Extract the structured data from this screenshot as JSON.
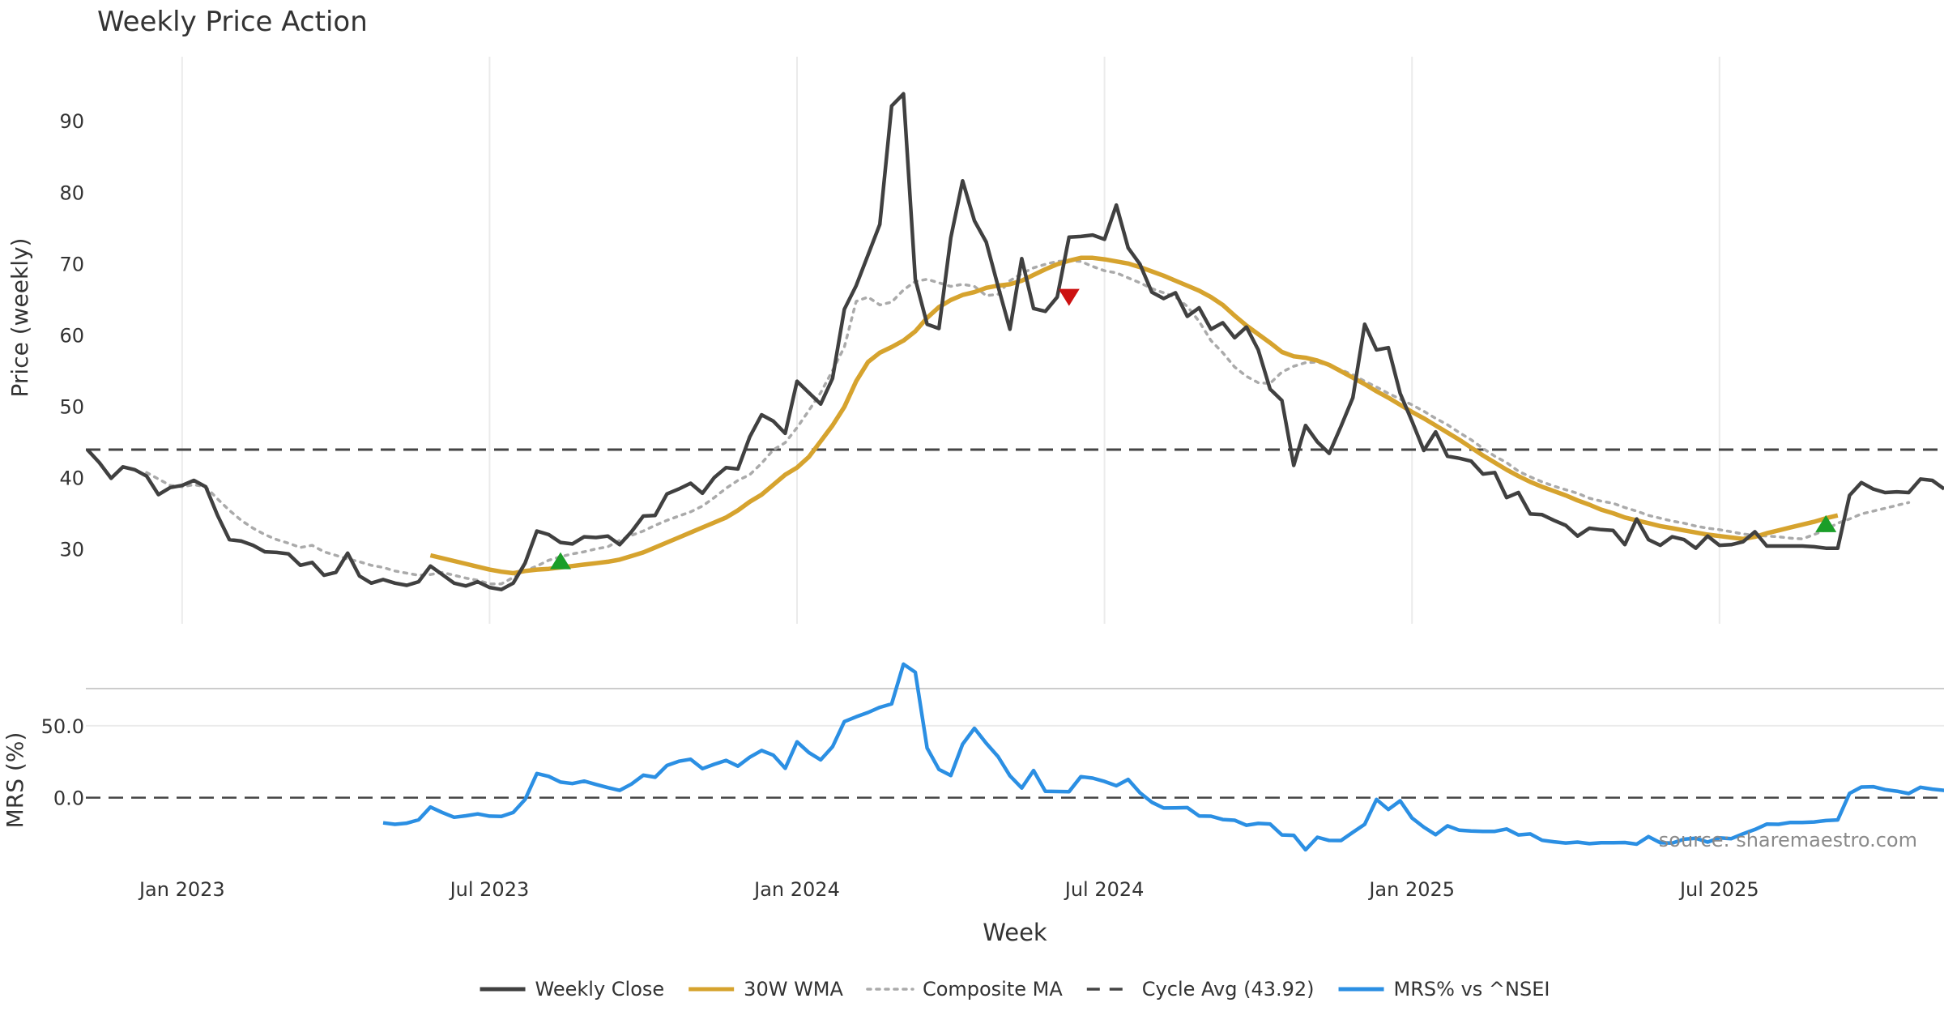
{
  "chart_data": [
    {
      "type": "line",
      "title": "Weekly Price Action",
      "ylabel": "Price (weekly)",
      "xlabel": "Week",
      "ylim": [
        19.5,
        99
      ],
      "yticks": [
        30,
        40,
        50,
        60,
        70,
        80,
        90
      ],
      "xticks": [
        {
          "label": "Jan 2023",
          "week": 13
        },
        {
          "label": "Jul 2023",
          "week": 39
        },
        {
          "label": "Jan 2024",
          "week": 65
        },
        {
          "label": "Jul 2024",
          "week": 91
        },
        {
          "label": "Jan 2025",
          "week": 117
        },
        {
          "label": "Jul 2025",
          "week": 143
        }
      ],
      "grid": "vertical",
      "cycle_avg": 43.92,
      "series": [
        {
          "name": "Weekly Close",
          "color": "#404040",
          "style": "solid",
          "x_start": 5,
          "values": [
            43.9,
            42.1,
            39.9,
            41.5,
            41.1,
            40.2,
            37.6,
            38.6,
            38.9,
            39.6,
            38.7,
            34.7,
            31.3,
            31.1,
            30.5,
            29.6,
            29.5,
            29.3,
            27.7,
            28.1,
            26.3,
            26.7,
            29.4,
            26.2,
            25.2,
            25.7,
            25.2,
            24.9,
            25.4,
            27.6,
            26.4,
            25.2,
            24.8,
            25.4,
            24.6,
            24.3,
            25.2,
            28.0,
            32.5,
            32.0,
            30.9,
            30.7,
            31.7,
            31.6,
            31.8,
            30.6,
            32.4,
            34.6,
            34.7,
            37.7,
            38.4,
            39.2,
            37.8,
            40.0,
            41.4,
            41.2,
            45.7,
            48.8,
            47.9,
            46.2,
            53.5,
            51.9,
            50.3,
            53.9,
            63.6,
            66.9,
            71.2,
            75.5,
            92.1,
            93.8,
            67.8,
            61.5,
            60.9,
            73.6,
            81.6,
            76.0,
            73.0,
            66.8,
            60.8,
            70.7,
            63.7,
            63.3,
            65.3,
            73.7,
            73.8,
            74.0,
            73.4,
            78.2,
            72.2,
            69.9,
            66.0,
            65.1,
            65.9,
            62.6,
            63.8,
            60.8,
            61.7,
            59.6,
            61.1,
            57.9,
            52.4,
            50.8,
            41.7,
            47.3,
            45.0,
            43.4,
            47.2,
            51.2,
            61.5,
            57.9,
            58.2,
            51.8,
            47.9,
            43.8,
            46.4,
            43.0,
            42.7,
            42.3,
            40.5,
            40.7,
            37.2,
            37.9,
            34.9,
            34.8,
            34.0,
            33.3,
            31.8,
            32.9,
            32.7,
            32.6,
            30.6,
            34.2,
            31.3,
            30.5,
            31.7,
            31.3,
            30.1,
            31.8,
            30.5,
            30.6,
            31.0,
            32.4,
            30.4,
            30.4,
            30.4,
            30.4,
            30.3,
            30.1,
            30.1,
            37.5,
            39.3,
            38.4,
            37.9,
            38.0,
            37.9,
            39.8,
            39.6,
            38.4
          ]
        },
        {
          "name": "30W WMA",
          "color": "#d6a32e",
          "style": "solid",
          "x_start": 34,
          "values": [
            29.1,
            28.7,
            28.3,
            27.9,
            27.5,
            27.1,
            26.8,
            26.6,
            26.9,
            27.1,
            27.2,
            27.4,
            27.6,
            27.8,
            28.0,
            28.2,
            28.5,
            29.0,
            29.5,
            30.2,
            30.9,
            31.6,
            32.3,
            33.0,
            33.7,
            34.4,
            35.4,
            36.6,
            37.6,
            39.0,
            40.4,
            41.4,
            42.9,
            45.1,
            47.3,
            49.9,
            53.5,
            56.2,
            57.5,
            58.3,
            59.2,
            60.5,
            62.4,
            63.9,
            64.9,
            65.6,
            66.0,
            66.6,
            66.9,
            67.1,
            67.6,
            68.4,
            69.2,
            69.9,
            70.4,
            70.8,
            70.8,
            70.6,
            70.3,
            70.0,
            69.5,
            68.9,
            68.3,
            67.6,
            66.9,
            66.2,
            65.3,
            64.2,
            62.7,
            61.3,
            60.1,
            58.9,
            57.6,
            57.0,
            56.8,
            56.4,
            55.8,
            54.9,
            54.0,
            53.1,
            52.1,
            51.2,
            50.2,
            49.2,
            48.3,
            47.3,
            46.3,
            45.3,
            44.2,
            43.1,
            42.1,
            41.1,
            40.2,
            39.4,
            38.7,
            38.1,
            37.5,
            36.8,
            36.2,
            35.5,
            35.0,
            34.4,
            34.0,
            33.6,
            33.2,
            32.9,
            32.6,
            32.3,
            32.0,
            31.8,
            31.6,
            31.4,
            31.7,
            32.2,
            32.6,
            33.0,
            33.4,
            33.8,
            34.3,
            34.7
          ]
        },
        {
          "name": "Composite MA",
          "color": "#aaaaaa",
          "style": "dotted",
          "x_start": 10,
          "values": [
            40.7,
            39.8,
            38.9,
            38.7,
            39.0,
            38.7,
            37.0,
            35.4,
            34.0,
            32.9,
            32.0,
            31.3,
            30.8,
            30.2,
            30.5,
            29.6,
            29.1,
            28.6,
            28.2,
            27.7,
            27.4,
            26.9,
            26.6,
            26.3,
            26.4,
            26.7,
            26.3,
            25.9,
            25.6,
            25.1,
            25.1,
            26.0,
            26.9,
            27.6,
            28.4,
            28.9,
            29.3,
            29.6,
            30.0,
            30.3,
            31.2,
            31.9,
            32.5,
            33.3,
            34.0,
            34.6,
            35.2,
            36.0,
            37.2,
            38.5,
            39.6,
            40.4,
            42.0,
            43.9,
            44.9,
            47.0,
            49.4,
            51.9,
            55.0,
            58.3,
            64.7,
            65.3,
            64.2,
            64.6,
            66.3,
            67.5,
            67.8,
            67.3,
            66.8,
            67.1,
            66.8,
            65.5,
            65.7,
            67.6,
            68.6,
            69.4,
            69.9,
            70.3,
            70.4,
            70.3,
            69.6,
            69.0,
            68.7,
            68.0,
            67.3,
            66.5,
            65.9,
            65.3,
            64.0,
            61.9,
            59.2,
            57.5,
            55.5,
            54.2,
            53.3,
            53.2,
            54.8,
            55.6,
            56.1,
            56.2,
            55.7,
            55.1,
            54.4,
            53.5,
            52.7,
            51.8,
            51.0,
            50.2,
            49.3,
            48.3,
            47.4,
            46.3,
            45.3,
            44.1,
            43.0,
            42.1,
            40.9,
            40.1,
            39.4,
            38.8,
            38.3,
            37.8,
            37.1,
            36.7,
            36.4,
            35.8,
            35.3,
            34.7,
            34.3,
            33.9,
            33.6,
            33.2,
            32.9,
            32.7,
            32.4,
            32.1,
            31.9,
            31.8,
            31.7,
            31.5,
            31.4,
            32.0,
            32.7,
            33.6,
            34.2,
            34.9,
            35.3,
            35.7,
            36.1,
            36.5
          ]
        },
        {
          "name": "Cycle Avg (43.92)",
          "color": "#444444",
          "style": "dashed",
          "value": 43.92
        }
      ],
      "signals": [
        {
          "type": "buy",
          "week": 45,
          "value": 28.4,
          "color": "#1a9e28"
        },
        {
          "type": "sell",
          "week": 88,
          "value": 65.2,
          "color": "#cc1111"
        },
        {
          "type": "buy",
          "week": 152,
          "value": 33.6,
          "color": "#1a9e28"
        }
      ]
    },
    {
      "type": "line",
      "ylabel": "MRS (%)",
      "xlabel": "Week",
      "ylim": [
        -34,
        73
      ],
      "yticks": [
        0,
        50
      ],
      "ytick_labels": [
        "0.0",
        "50.0"
      ],
      "zero_line": "dashed",
      "series": [
        {
          "name": "MRS% vs ^NSEI",
          "color": "#2b8fe3",
          "style": "solid",
          "x_start": 30,
          "values": [
            -17.5,
            -18.5,
            -17.7,
            -15.4,
            -6.5,
            -10.3,
            -13.6,
            -12.6,
            -11.3,
            -12.8,
            -13.0,
            -10.3,
            -1.3,
            16.8,
            14.8,
            10.8,
            9.8,
            11.5,
            9.2,
            7.0,
            5.1,
            9.5,
            15.6,
            14.2,
            22.4,
            25.3,
            26.7,
            20.2,
            23.2,
            25.9,
            21.9,
            28.1,
            32.8,
            29.5,
            20.4,
            38.8,
            31.4,
            26.3,
            35.4,
            52.9,
            56.2,
            59.2,
            62.8,
            65.2,
            92.8,
            87.2,
            34.5,
            19.6,
            15.4,
            37.2,
            48.2,
            37.8,
            28.5,
            15.2,
            6.7,
            18.9,
            4.4,
            4.3,
            4.2,
            14.6,
            13.6,
            11.3,
            8.3,
            12.7,
            3.4,
            -3.2,
            -7.2,
            -7.1,
            -6.9,
            -12.7,
            -12.9,
            -15.2,
            -15.7,
            -19.2,
            -17.9,
            -18.3,
            -25.9,
            -26.2,
            -36.2,
            -27.5,
            -29.7,
            -29.8,
            -24.1,
            -18.5,
            -1.2,
            -8.2,
            -2.2,
            -14.1,
            -20.5,
            -25.7,
            -19.6,
            -22.6,
            -23.2,
            -23.4,
            -23.4,
            -21.8,
            -25.9,
            -25.2,
            -29.6,
            -30.7,
            -31.5,
            -30.9,
            -32.0,
            -31.3,
            -31.3,
            -31.2,
            -32.3,
            -27.1,
            -31.3,
            -31.6,
            -28.9,
            -28.2,
            -30.9,
            -27.9,
            -28.5,
            -25.1,
            -22.1,
            -18.4,
            -18.5,
            -17.2,
            -17.3,
            -16.9,
            -15.9,
            -15.5,
            3.0,
            7.4,
            7.6,
            5.6,
            4.5,
            2.9,
            7.2,
            5.9,
            5.1
          ]
        }
      ],
      "annotation": "source: sharemaestro.com"
    }
  ],
  "legend": {
    "placement": "bottom-center",
    "items": [
      {
        "label": "Weekly Close",
        "color": "#404040",
        "style": "solid"
      },
      {
        "label": "30W WMA",
        "color": "#d6a32e",
        "style": "solid"
      },
      {
        "label": "Composite MA",
        "color": "#aaaaaa",
        "style": "dotted"
      },
      {
        "label": "Cycle Avg (43.92)",
        "color": "#444444",
        "style": "dashed"
      },
      {
        "label": "MRS% vs ^NSEI",
        "color": "#2b8fe3",
        "style": "solid"
      }
    ]
  }
}
